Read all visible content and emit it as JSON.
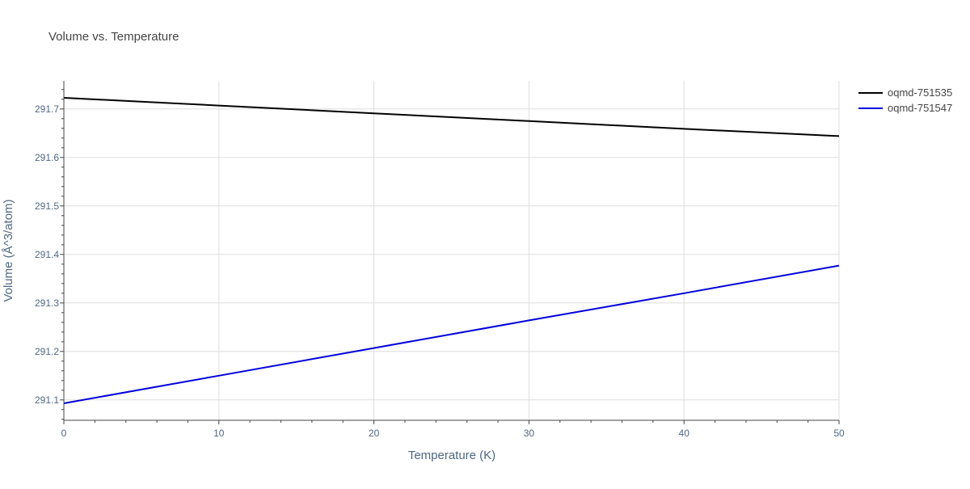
{
  "chart_data": {
    "type": "line",
    "title": "Volume vs. Temperature",
    "xlabel": "Temperature (K)",
    "ylabel": "Volume (Å^3/atom)",
    "xlim": [
      0,
      50
    ],
    "ylim": [
      291.058,
      291.758
    ],
    "xticks": [
      0,
      10,
      20,
      30,
      40,
      50
    ],
    "yticks": [
      291.1,
      291.2,
      291.3,
      291.4,
      291.5,
      291.6,
      291.7
    ],
    "ytick_labels": [
      "291.1",
      "291.2",
      "291.3",
      "291.4",
      "291.5",
      "291.6",
      "291.7"
    ],
    "grid": true,
    "legend_position": "top-right",
    "series": [
      {
        "name": "oqmd-751535",
        "color": "#000000",
        "x": [
          0,
          10,
          20,
          30,
          40,
          50
        ],
        "y": [
          291.723,
          291.707,
          291.691,
          291.675,
          291.659,
          291.644
        ]
      },
      {
        "name": "oqmd-751547",
        "color": "#0000dd",
        "x": [
          0,
          10,
          20,
          30,
          40,
          50
        ],
        "y": [
          291.093,
          291.15,
          291.207,
          291.264,
          291.32,
          291.377
        ]
      }
    ]
  }
}
